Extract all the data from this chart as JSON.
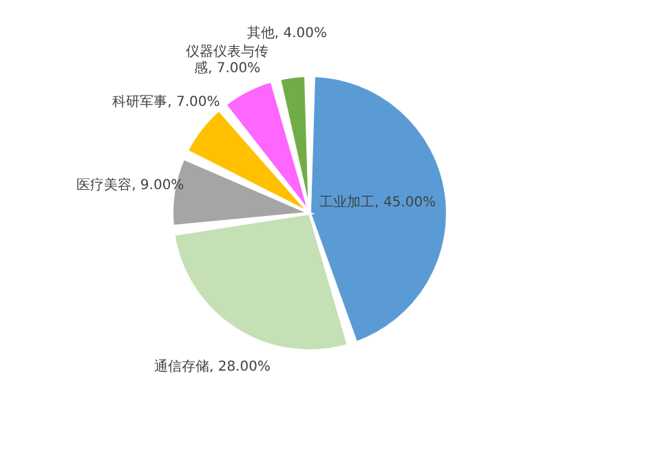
{
  "chart_data": {
    "type": "pie",
    "categories": [
      "工业加工",
      "通信存储",
      "医疗美容",
      "科研军事",
      "仪器仪表与传感",
      "其他"
    ],
    "values": [
      45,
      28,
      9,
      7,
      7,
      4
    ],
    "value_labels": [
      "45.00%",
      "28.00%",
      "9.00%",
      "7.00%",
      "7.00%",
      "4.00%"
    ],
    "colors": [
      "#5b9bd5",
      "#c5e0b4",
      "#a5a5a5",
      "#ffc000",
      "#ff66ff",
      "#70ad47"
    ],
    "legend": false
  }
}
